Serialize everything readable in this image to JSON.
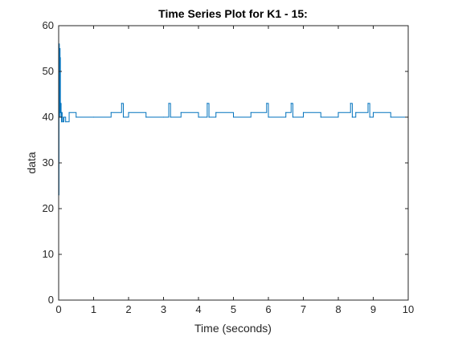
{
  "chart_data": {
    "type": "line",
    "title": "Time Series Plot for K1 - 15:",
    "xlabel": "Time (seconds)",
    "ylabel": "data",
    "xlim": [
      0,
      10
    ],
    "ylim": [
      0,
      60
    ],
    "xticks": [
      0,
      1,
      2,
      3,
      4,
      5,
      6,
      7,
      8,
      9,
      10
    ],
    "yticks": [
      0,
      10,
      20,
      30,
      40,
      50,
      60
    ],
    "grid": false,
    "legend": "none",
    "series_color": "#0072BD",
    "series": [
      {
        "x": [
          0,
          0.01,
          0.02,
          0.03,
          0.04,
          0.05,
          0.06,
          0.07,
          0.08,
          0.09,
          0.1,
          0.12,
          0.15,
          0.2,
          0.3,
          0.5,
          1.0,
          1.5,
          1.8,
          1.85,
          2.0,
          2.5,
          3.0,
          3.15,
          3.2,
          3.5,
          4.0,
          4.25,
          4.3,
          4.5,
          5.0,
          5.5,
          5.95,
          6.0,
          6.5,
          6.65,
          6.7,
          7.0,
          7.5,
          8.0,
          8.35,
          8.4,
          8.5,
          8.85,
          8.9,
          9.0,
          9.5,
          10.0
        ],
        "y": [
          23,
          56,
          40,
          55,
          53,
          41,
          43,
          40,
          39,
          41,
          40,
          39,
          40,
          39,
          41,
          40,
          40,
          41,
          43,
          40,
          41,
          40,
          40,
          43,
          40,
          41,
          40,
          43,
          40,
          41,
          40,
          41,
          43,
          40,
          41,
          43,
          40,
          41,
          40,
          41,
          43,
          40,
          41,
          43,
          40,
          41,
          40,
          40
        ]
      }
    ]
  }
}
